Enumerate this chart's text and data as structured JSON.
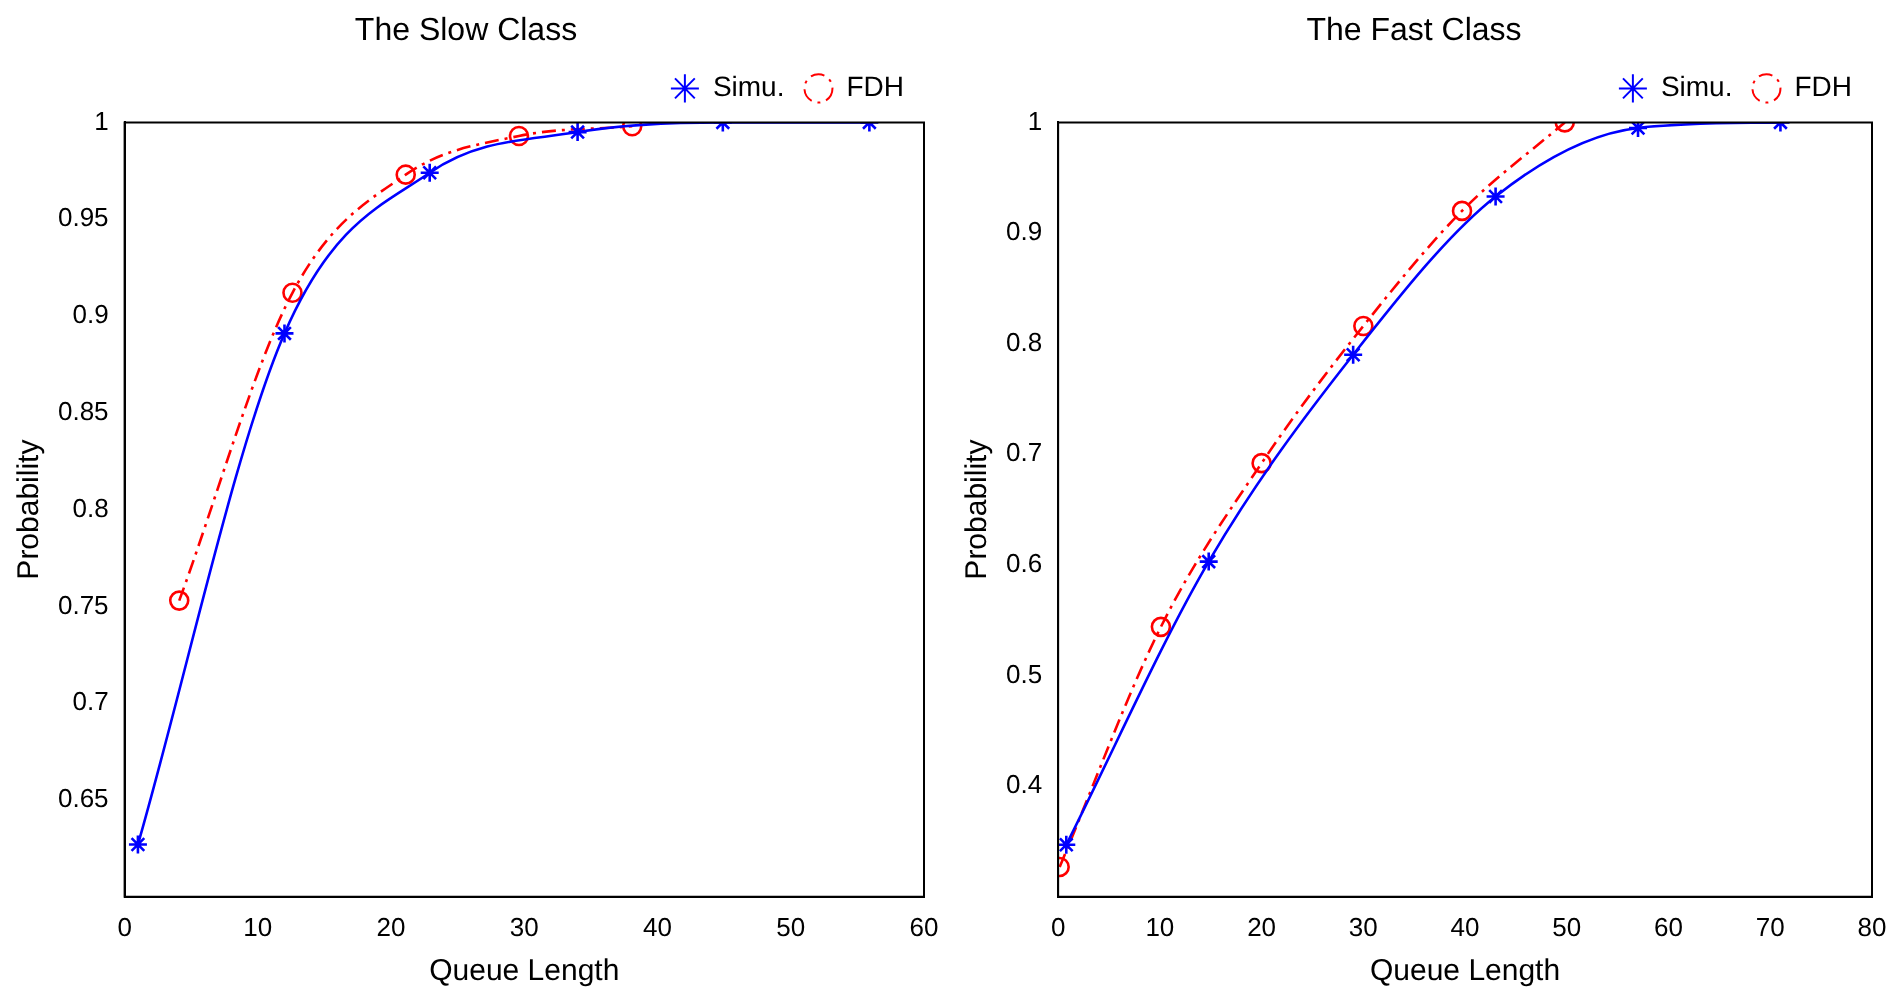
{
  "chart_data": [
    {
      "type": "line",
      "title": "The Slow Class",
      "xlabel": "Queue Length",
      "ylabel": "Probability",
      "xlim": [
        0,
        60
      ],
      "xticks": [
        0,
        10,
        20,
        30,
        40,
        50,
        60
      ],
      "ylim": [
        0.6,
        1
      ],
      "yticks": [
        0.65,
        0.7,
        0.75,
        0.8,
        0.85,
        0.9,
        0.95,
        1
      ],
      "grid": false,
      "legend": "top right",
      "series": [
        {
          "name": "Simu.",
          "color": "#0000ff",
          "marker": "cross",
          "line_style": "solid",
          "x": [
            1,
            12,
            22.9,
            34,
            44.9,
            55.9
          ],
          "values": [
            0.627,
            0.891,
            0.974,
            0.995,
            1,
            1
          ]
        },
        {
          "name": "FDH",
          "color": "#ff0000",
          "marker": "circle",
          "line_style": "dashed",
          "x": [
            4.1,
            12.6,
            21.1,
            29.6,
            38.1
          ],
          "values": [
            0.753,
            0.912,
            0.973,
            0.993,
            0.998
          ]
        }
      ]
    },
    {
      "type": "line",
      "title": "The Fast Class",
      "xlabel": "Queue Length",
      "ylabel": "Probability",
      "xlim": [
        0,
        80
      ],
      "xticks": [
        0,
        10,
        20,
        30,
        40,
        50,
        60,
        70,
        80
      ],
      "ylim": [
        0.3,
        1
      ],
      "yticks": [
        0.4,
        0.5,
        0.6,
        0.7,
        0.8,
        0.9,
        1
      ],
      "grid": false,
      "legend": "top right",
      "series": [
        {
          "name": "Simu.",
          "color": "#0000ff",
          "marker": "cross",
          "line_style": "solid",
          "x": [
            0.8,
            14.8,
            29,
            43,
            57,
            71
          ],
          "values": [
            0.347,
            0.603,
            0.79,
            0.933,
            0.995,
            1
          ]
        },
        {
          "name": "FDH",
          "color": "#ff0000",
          "marker": "circle",
          "line_style": "dashed",
          "x": [
            0.15,
            10.1,
            20,
            30,
            39.7,
            49.8
          ],
          "values": [
            0.327,
            0.544,
            0.692,
            0.816,
            0.92,
            1
          ]
        }
      ]
    }
  ]
}
